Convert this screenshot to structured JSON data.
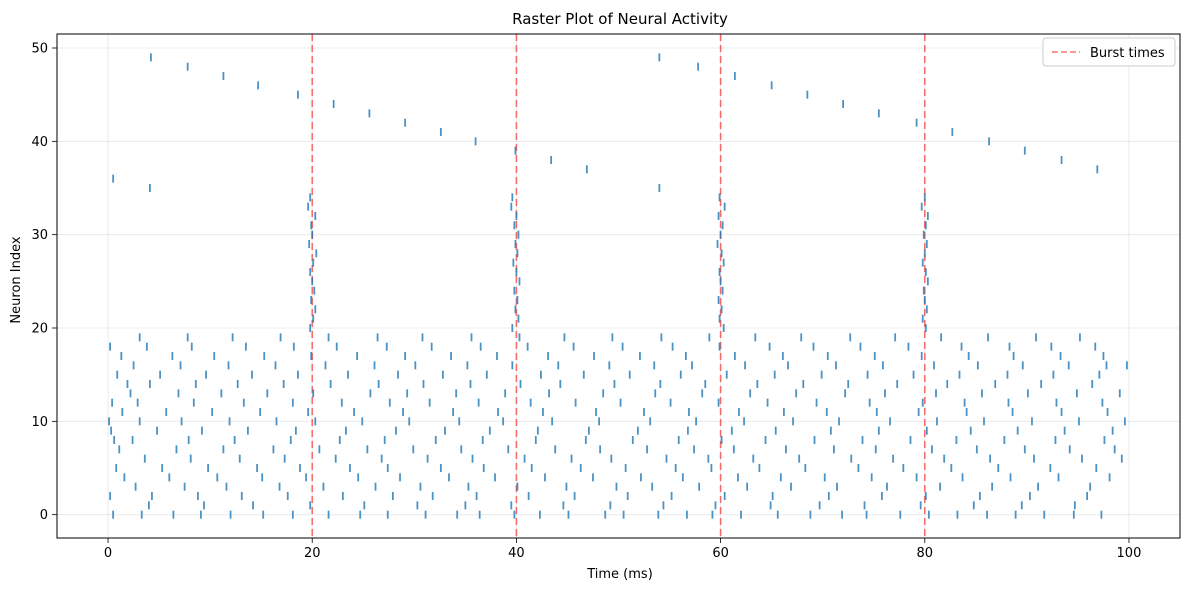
{
  "chart_data": {
    "type": "scatter",
    "title": "Raster Plot of Neural Activity",
    "xlabel": "Time (ms)",
    "ylabel": "Neuron Index",
    "xlim": [
      -5,
      105
    ],
    "ylim": [
      -2.5,
      51.5
    ],
    "xticks": [
      0,
      20,
      40,
      60,
      80,
      100
    ],
    "yticks": [
      0,
      10,
      20,
      30,
      40,
      50
    ],
    "grid": true,
    "legend_position": "top-right",
    "colors": {
      "spike": "#1f77b4",
      "burst": "#ff0000"
    },
    "burst_times": {
      "name": "Burst times",
      "x": [
        20,
        40,
        60,
        80
      ]
    },
    "spikes": {
      "neuron_ids": [
        0,
        1,
        2,
        3,
        4,
        5,
        6,
        7,
        8,
        9,
        10,
        11,
        12,
        13,
        14,
        15,
        16,
        17,
        18,
        19,
        20,
        21,
        22,
        23,
        24,
        25,
        26,
        27,
        28,
        29,
        30,
        31,
        32,
        33,
        34,
        35,
        36,
        37,
        38,
        39,
        40,
        41,
        42,
        43,
        44,
        45,
        46,
        47,
        48,
        49
      ],
      "times": [
        [
          0.5,
          3.3,
          6.4,
          9.1,
          12,
          15.2,
          18.1,
          21.6,
          24.7,
          27.4,
          31.1,
          34.2,
          36.4,
          39.8,
          42.3,
          45.1,
          48.7,
          50.5,
          53.9,
          56.7,
          59.2,
          62,
          65.6,
          68.8,
          71.9,
          74.3,
          77.6,
          80.4,
          83.2,
          86.1,
          88.9,
          91.7,
          94.6,
          97.3
        ],
        [
          4,
          9.4,
          14.2,
          19.8,
          25.1,
          30.3,
          35,
          39.5,
          44.6,
          49.2,
          54.4,
          59.5,
          64.9,
          69.7,
          74.1,
          79.6,
          84.8,
          89.5,
          94.7
        ],
        [
          0.2,
          4.3,
          8.8,
          13.1,
          17.6,
          23,
          27.9,
          31.8,
          36.1,
          41.2,
          45.7,
          50.9,
          55.2,
          60.4,
          65.1,
          70.6,
          75.8,
          80.1,
          85.4,
          90.3,
          95.9
        ],
        [
          2.7,
          7.5,
          11.6,
          16.8,
          21.1,
          26.2,
          30.6,
          35.3,
          40.1,
          44.9,
          49.8,
          53.3,
          57.9,
          62.6,
          66.9,
          71.4,
          76.3,
          81.5,
          86.6,
          91.1,
          96.2
        ],
        [
          1.6,
          6,
          10.7,
          15.1,
          19.4,
          24.5,
          28.6,
          33.4,
          37.9,
          42.8,
          47.5,
          52.2,
          56.3,
          61.7,
          65.9,
          70.2,
          74.8,
          79.2,
          83.7,
          88.4,
          93.1,
          98.1
        ],
        [
          0.8,
          5.3,
          9.8,
          14.6,
          18.8,
          23.7,
          27.4,
          32.6,
          36.8,
          41.5,
          46.3,
          50.7,
          55.6,
          59.1,
          63.8,
          68.3,
          73.5,
          77.9,
          82.6,
          87.2,
          92.3,
          96.8
        ],
        [
          3.6,
          8.1,
          12.9,
          17.3,
          22.3,
          26.8,
          31.3,
          35.7,
          40.8,
          45.4,
          49.3,
          54.7,
          58.8,
          63.2,
          67.7,
          72.8,
          76.9,
          81.9,
          86.4,
          90.7,
          95.4,
          99.3
        ],
        [
          1.1,
          6.7,
          11.3,
          16.2,
          20.7,
          25.4,
          29.9,
          34.6,
          39.2,
          43.8,
          48.2,
          52.8,
          57.4,
          61.3,
          66.4,
          71.1,
          75.2,
          80.7,
          85.1,
          89.8,
          94.2,
          98.6
        ],
        [
          0.6,
          2.4,
          7.9,
          12.4,
          17.9,
          22.7,
          27.1,
          32.1,
          36.7,
          41.9,
          46.8,
          51.4,
          55.9,
          60.1,
          64.4,
          69.2,
          73.9,
          78.6,
          83.1,
          87.8,
          92.8,
          97.6
        ],
        [
          0.3,
          4.8,
          9.2,
          13.7,
          18.4,
          23.3,
          28.2,
          33,
          37.4,
          42.1,
          47.1,
          51.9,
          56.8,
          61.1,
          65.4,
          70.8,
          75.5,
          80.2,
          84.5,
          89.1,
          93.7,
          98.4
        ],
        [
          0.1,
          3.1,
          7.2,
          11.9,
          16.5,
          20.3,
          24.9,
          29.5,
          34.4,
          38.7,
          43.5,
          48.1,
          53.1,
          57.6,
          62.3,
          67.1,
          71.6,
          76.6,
          81.2,
          85.8,
          90.5,
          95.1,
          99.6
        ],
        [
          1.4,
          5.7,
          10.2,
          14.9,
          19.6,
          24.1,
          28.9,
          33.8,
          38.2,
          42.6,
          47.8,
          52.5,
          56.9,
          61.8,
          66.2,
          70.4,
          75.3,
          79.4,
          84.1,
          88.6,
          93.4,
          97.9
        ],
        [
          0.4,
          2.9,
          8.4,
          13.3,
          18.1,
          22.9,
          27.6,
          31.5,
          36.3,
          41.4,
          45.8,
          50.2,
          55.1,
          59.8,
          64.6,
          69.4,
          74.6,
          79.8,
          83.9,
          88.2,
          92.9,
          97.4
        ],
        [
          2.2,
          6.9,
          11.1,
          15.6,
          20.1,
          25.7,
          29.3,
          34.1,
          38.9,
          43.2,
          48.5,
          53.6,
          58.2,
          62.9,
          67.4,
          72.2,
          76.1,
          81.1,
          85.6,
          90.1,
          94.9,
          99.1
        ],
        [
          1.9,
          4.1,
          8.6,
          12.7,
          17.2,
          21.8,
          26.5,
          30.9,
          35.5,
          40.4,
          44.3,
          49.6,
          54.1,
          58.5,
          63.6,
          68.1,
          72.5,
          77.3,
          82.2,
          86.9,
          91.4,
          96.4
        ],
        [
          0.9,
          5.1,
          9.6,
          14.1,
          18.6,
          23.5,
          28.4,
          32.8,
          37.1,
          42.4,
          46.6,
          51.1,
          56.1,
          60.6,
          65.3,
          69.9,
          74.4,
          78.9,
          83.4,
          88.1,
          92.6,
          97.1
        ],
        [
          2.5,
          7.1,
          11.8,
          16.4,
          21.3,
          26.1,
          30.1,
          35.2,
          39.6,
          44.1,
          49.1,
          53.5,
          57.2,
          62.4,
          66.6,
          71.3,
          75.9,
          80.9,
          85.2,
          89.6,
          94.1,
          97.8,
          99.8
        ],
        [
          1.3,
          6.3,
          10.4,
          15.3,
          19.9,
          24.4,
          29.1,
          33.6,
          38.1,
          43.1,
          47.6,
          52.1,
          56.6,
          61.4,
          66.1,
          70.5,
          75.1,
          79.7,
          84.3,
          88.7,
          93.3,
          97.5
        ],
        [
          0.2,
          3.8,
          8.2,
          13.5,
          18.2,
          22.4,
          27.3,
          31.7,
          36.5,
          41.1,
          45.6,
          50.4,
          55.3,
          59.9,
          64.8,
          69.1,
          73.7,
          78.4,
          83.6,
          88.3,
          92.4,
          96.7
        ],
        [
          3.1,
          7.8,
          12.2,
          16.9,
          21.6,
          26.4,
          30.8,
          35.6,
          40.3,
          44.7,
          49.4,
          54.2,
          58.9,
          63.4,
          67.9,
          72.7,
          77.1,
          81.6,
          86.2,
          90.9,
          95.2
        ],
        [
          19.8,
          39.6,
          60.3,
          80.1
        ],
        [
          20.1,
          40.2,
          59.9,
          79.8
        ],
        [
          20.3,
          39.9,
          60.1,
          80.2
        ],
        [
          19.9,
          40.1,
          59.8,
          80
        ],
        [
          20.2,
          39.8,
          60.2,
          79.9
        ],
        [
          20,
          40.3,
          60,
          80.3
        ],
        [
          19.8,
          40,
          59.9,
          80.1
        ],
        [
          20.1,
          39.7,
          60.3,
          79.8
        ],
        [
          20.4,
          40.1,
          60.1,
          80
        ],
        [
          19.7,
          39.9,
          59.7,
          80.2
        ],
        [
          20,
          40.2,
          60,
          79.9
        ],
        [
          19.9,
          39.8,
          60.2,
          80.1
        ],
        [
          20.3,
          40,
          59.8,
          80.3
        ],
        [
          19.6,
          39.5,
          60.4,
          79.7
        ],
        [
          19.8,
          39.6,
          59.9,
          80
        ],
        [
          4.1,
          54
        ],
        [
          0.5
        ],
        [
          46.9,
          96.9
        ],
        [
          43.4,
          93.4
        ],
        [
          39.9,
          89.8
        ],
        [
          36,
          86.3
        ],
        [
          32.6,
          82.7
        ],
        [
          29.1,
          79.2
        ],
        [
          25.6,
          75.5
        ],
        [
          22.1,
          72
        ],
        [
          18.6,
          68.5
        ],
        [
          14.7,
          65
        ],
        [
          11.3,
          61.4
        ],
        [
          7.8,
          57.8
        ],
        [
          4.2,
          54
        ]
      ]
    }
  }
}
